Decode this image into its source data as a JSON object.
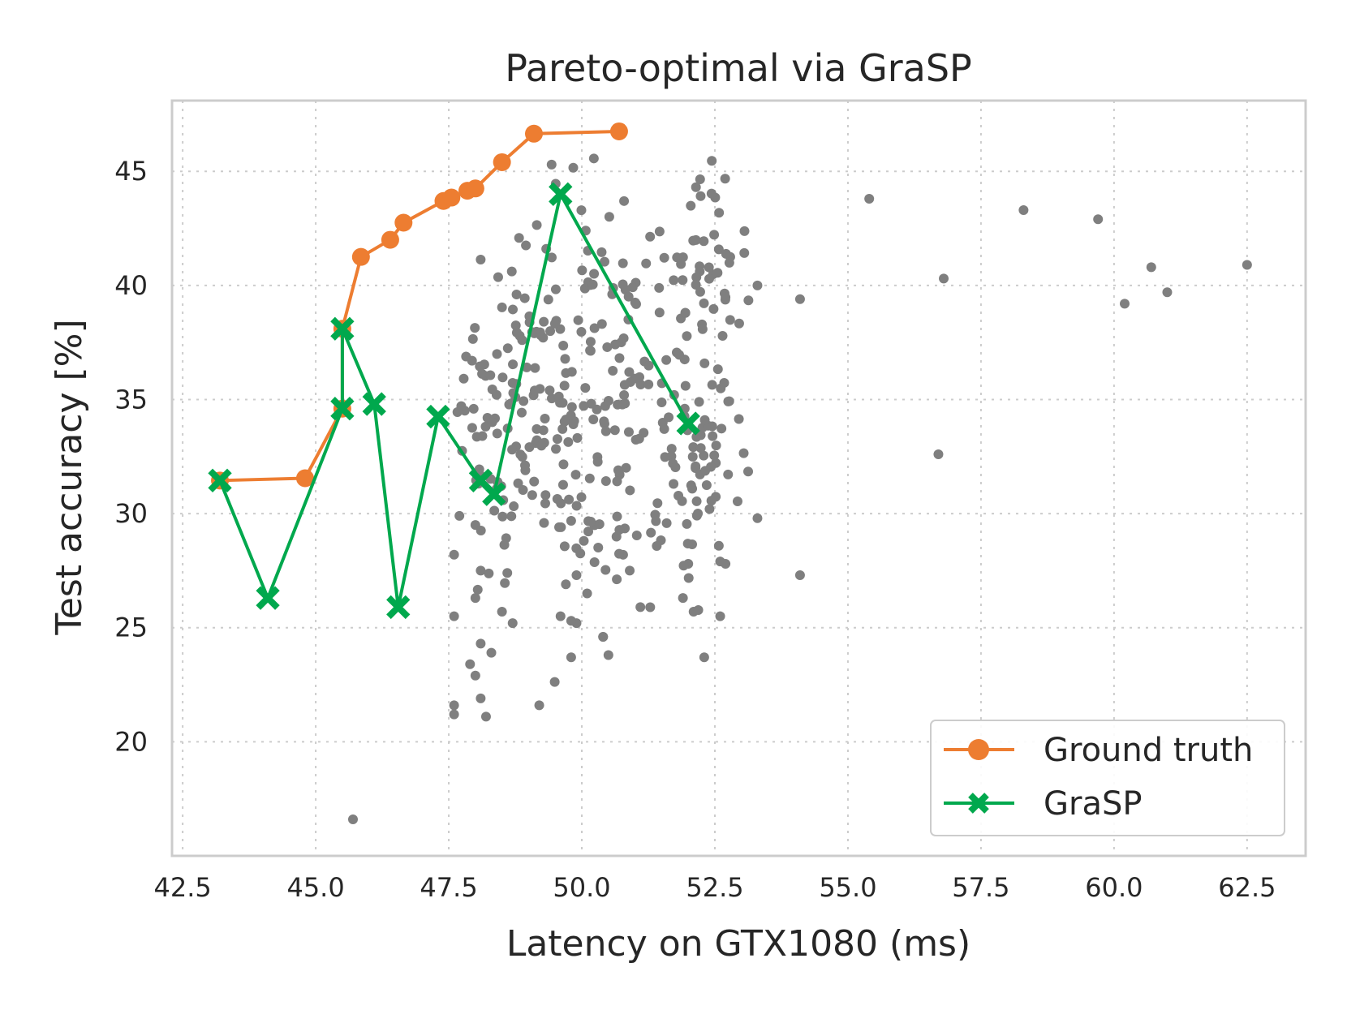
{
  "chart_data": {
    "type": "scatter",
    "title": "Pareto-optimal via GraSP",
    "xlabel": "Latency on GTX1080 (ms)",
    "ylabel": "Test accuracy [%]",
    "xlim": [
      42.3,
      63.6
    ],
    "ylim": [
      15.0,
      48.1
    ],
    "xticks": [
      42.5,
      45.0,
      47.5,
      50.0,
      52.5,
      55.0,
      57.5,
      60.0,
      62.5
    ],
    "xtick_labels": [
      "42.5",
      "45.0",
      "47.5",
      "50.0",
      "52.5",
      "55.0",
      "57.5",
      "60.0",
      "62.5"
    ],
    "yticks": [
      20,
      25,
      30,
      35,
      40,
      45
    ],
    "ytick_labels": [
      "20",
      "25",
      "30",
      "35",
      "40",
      "45"
    ],
    "grid": true,
    "legend_position": "lower-right",
    "colors": {
      "scatter": "#7f7f7f",
      "ground_truth": "#ed7d31",
      "grasp": "#00a84d",
      "grid": "#cccccc",
      "frame": "#cccccc"
    },
    "series": [
      {
        "name": "Ground truth",
        "marker": "circle",
        "color": "#ed7d31",
        "x": [
          43.2,
          44.8,
          45.5,
          45.5,
          45.85,
          46.4,
          46.65,
          47.4,
          47.55,
          47.85,
          48.0,
          48.5,
          49.1,
          50.7
        ],
        "y": [
          31.45,
          31.55,
          34.6,
          38.1,
          41.25,
          42.0,
          42.75,
          43.7,
          43.85,
          44.15,
          44.25,
          45.4,
          46.65,
          46.75
        ]
      },
      {
        "name": "GraSP",
        "marker": "x",
        "color": "#00a84d",
        "x": [
          43.2,
          44.1,
          45.5,
          45.5,
          46.1,
          46.55,
          47.3,
          48.1,
          48.35,
          49.6,
          52.0
        ],
        "y": [
          31.45,
          26.3,
          34.6,
          38.1,
          34.8,
          25.9,
          34.25,
          31.45,
          30.85,
          44.0,
          33.95
        ]
      },
      {
        "name": "architectures",
        "marker": "dot",
        "color": "#7f7f7f",
        "x": [
          45.7,
          48.2,
          48.1,
          47.6,
          47.6,
          49.2,
          48.0,
          47.9,
          48.3,
          48.1,
          47.6,
          48.7,
          48.5,
          48.0,
          48.6,
          48.1,
          47.6,
          48.0,
          47.7,
          49.8,
          50.4,
          50.5,
          49.6,
          49.9,
          49.7,
          49.9,
          50.1,
          50.4,
          49.8,
          51.1,
          50.9,
          52.3,
          52.1,
          52.6,
          51.9,
          52.0,
          54.1,
          53.3,
          52.7,
          52.6,
          52.4,
          54.1,
          53.3,
          56.7,
          55.4,
          56.8,
          58.3,
          59.7,
          60.7,
          60.2,
          61.0,
          62.5
        ],
        "y": [
          16.6,
          21.1,
          21.9,
          21.2,
          21.6,
          21.6,
          22.9,
          23.4,
          23.9,
          24.3,
          25.5,
          25.2,
          25.7,
          26.3,
          27.4,
          27.5,
          28.2,
          29.5,
          29.9,
          23.7,
          24.6,
          23.8,
          25.5,
          25.2,
          26.9,
          27.3,
          26.5,
          24.6,
          25.3,
          25.9,
          27.5,
          23.7,
          25.7,
          25.5,
          26.3,
          27.8,
          27.3,
          29.8,
          27.8,
          27.9,
          30.2,
          39.4,
          40.0,
          32.6,
          43.8,
          40.3,
          43.3,
          42.9,
          40.8,
          39.2,
          39.7,
          40.9
        ]
      }
    ]
  }
}
